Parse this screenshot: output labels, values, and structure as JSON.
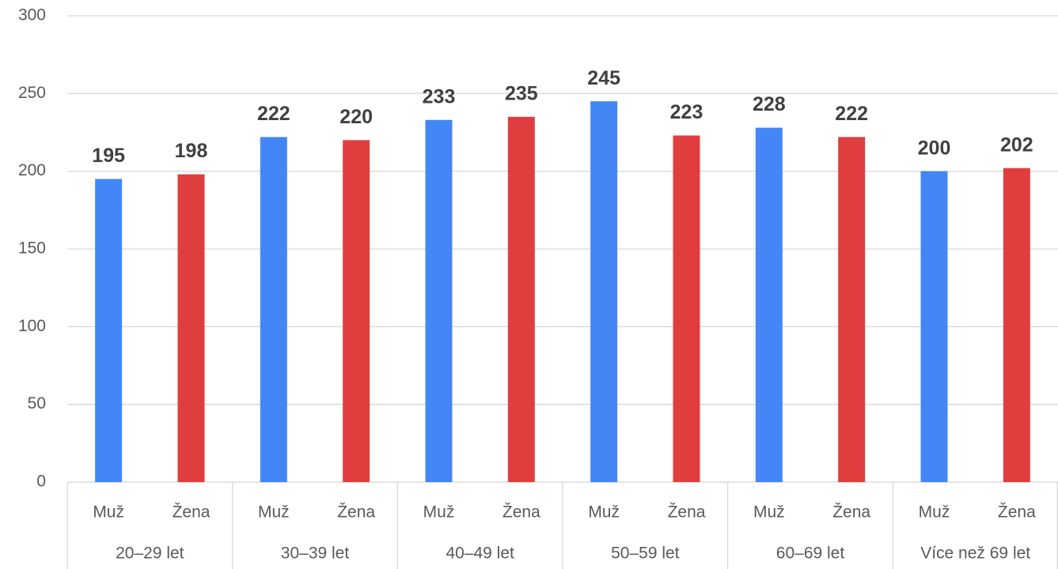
{
  "chart_data": {
    "type": "bar",
    "categories": [
      "20–29 let",
      "30–39 let",
      "40–49 let",
      "50–59 let",
      "60–69 let",
      "Více než 69 let"
    ],
    "series": [
      {
        "name": "Muž",
        "color": "#4287f5",
        "values": [
          195,
          222,
          233,
          245,
          228,
          200
        ]
      },
      {
        "name": "Žena",
        "color": "#e03e3e",
        "values": [
          198,
          220,
          235,
          223,
          222,
          202
        ]
      }
    ],
    "ylim": [
      0,
      300
    ],
    "yticks": [
      0,
      50,
      100,
      150,
      200,
      250,
      300
    ],
    "grid": true
  }
}
